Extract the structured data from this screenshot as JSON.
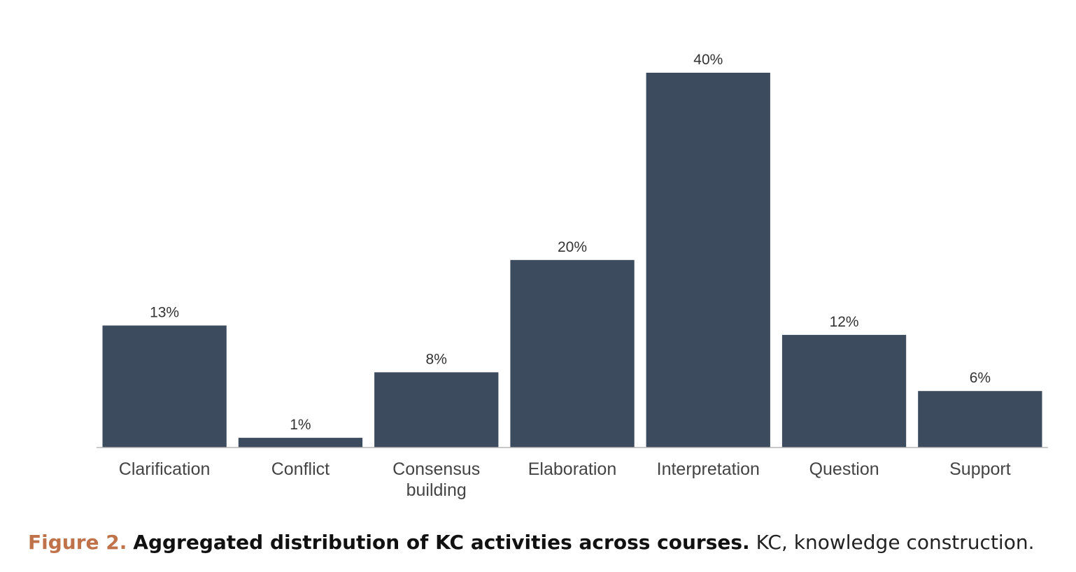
{
  "chart_data": {
    "type": "bar",
    "categories": [
      [
        "Clarification"
      ],
      [
        "Conflict"
      ],
      [
        "Consensus",
        "building"
      ],
      [
        "Elaboration"
      ],
      [
        "Interpretation"
      ],
      [
        "Question"
      ],
      [
        "Support"
      ]
    ],
    "values": [
      13,
      1,
      8,
      20,
      40,
      12,
      6
    ],
    "value_labels": [
      "13%",
      "1%",
      "8%",
      "20%",
      "40%",
      "12%",
      "6%"
    ],
    "unit": "%",
    "ylim": [
      0,
      40
    ],
    "grid": false,
    "legend": "none",
    "xlabel": "",
    "ylabel": ""
  },
  "colors": {
    "bar": "#3d4b5f",
    "axis": "#b5b5b5",
    "caption_label": "#c0734a"
  },
  "caption": {
    "label": "Figure 2.",
    "title": "Aggregated distribution of KC activities across courses.",
    "text": "KC, knowledge construction."
  }
}
